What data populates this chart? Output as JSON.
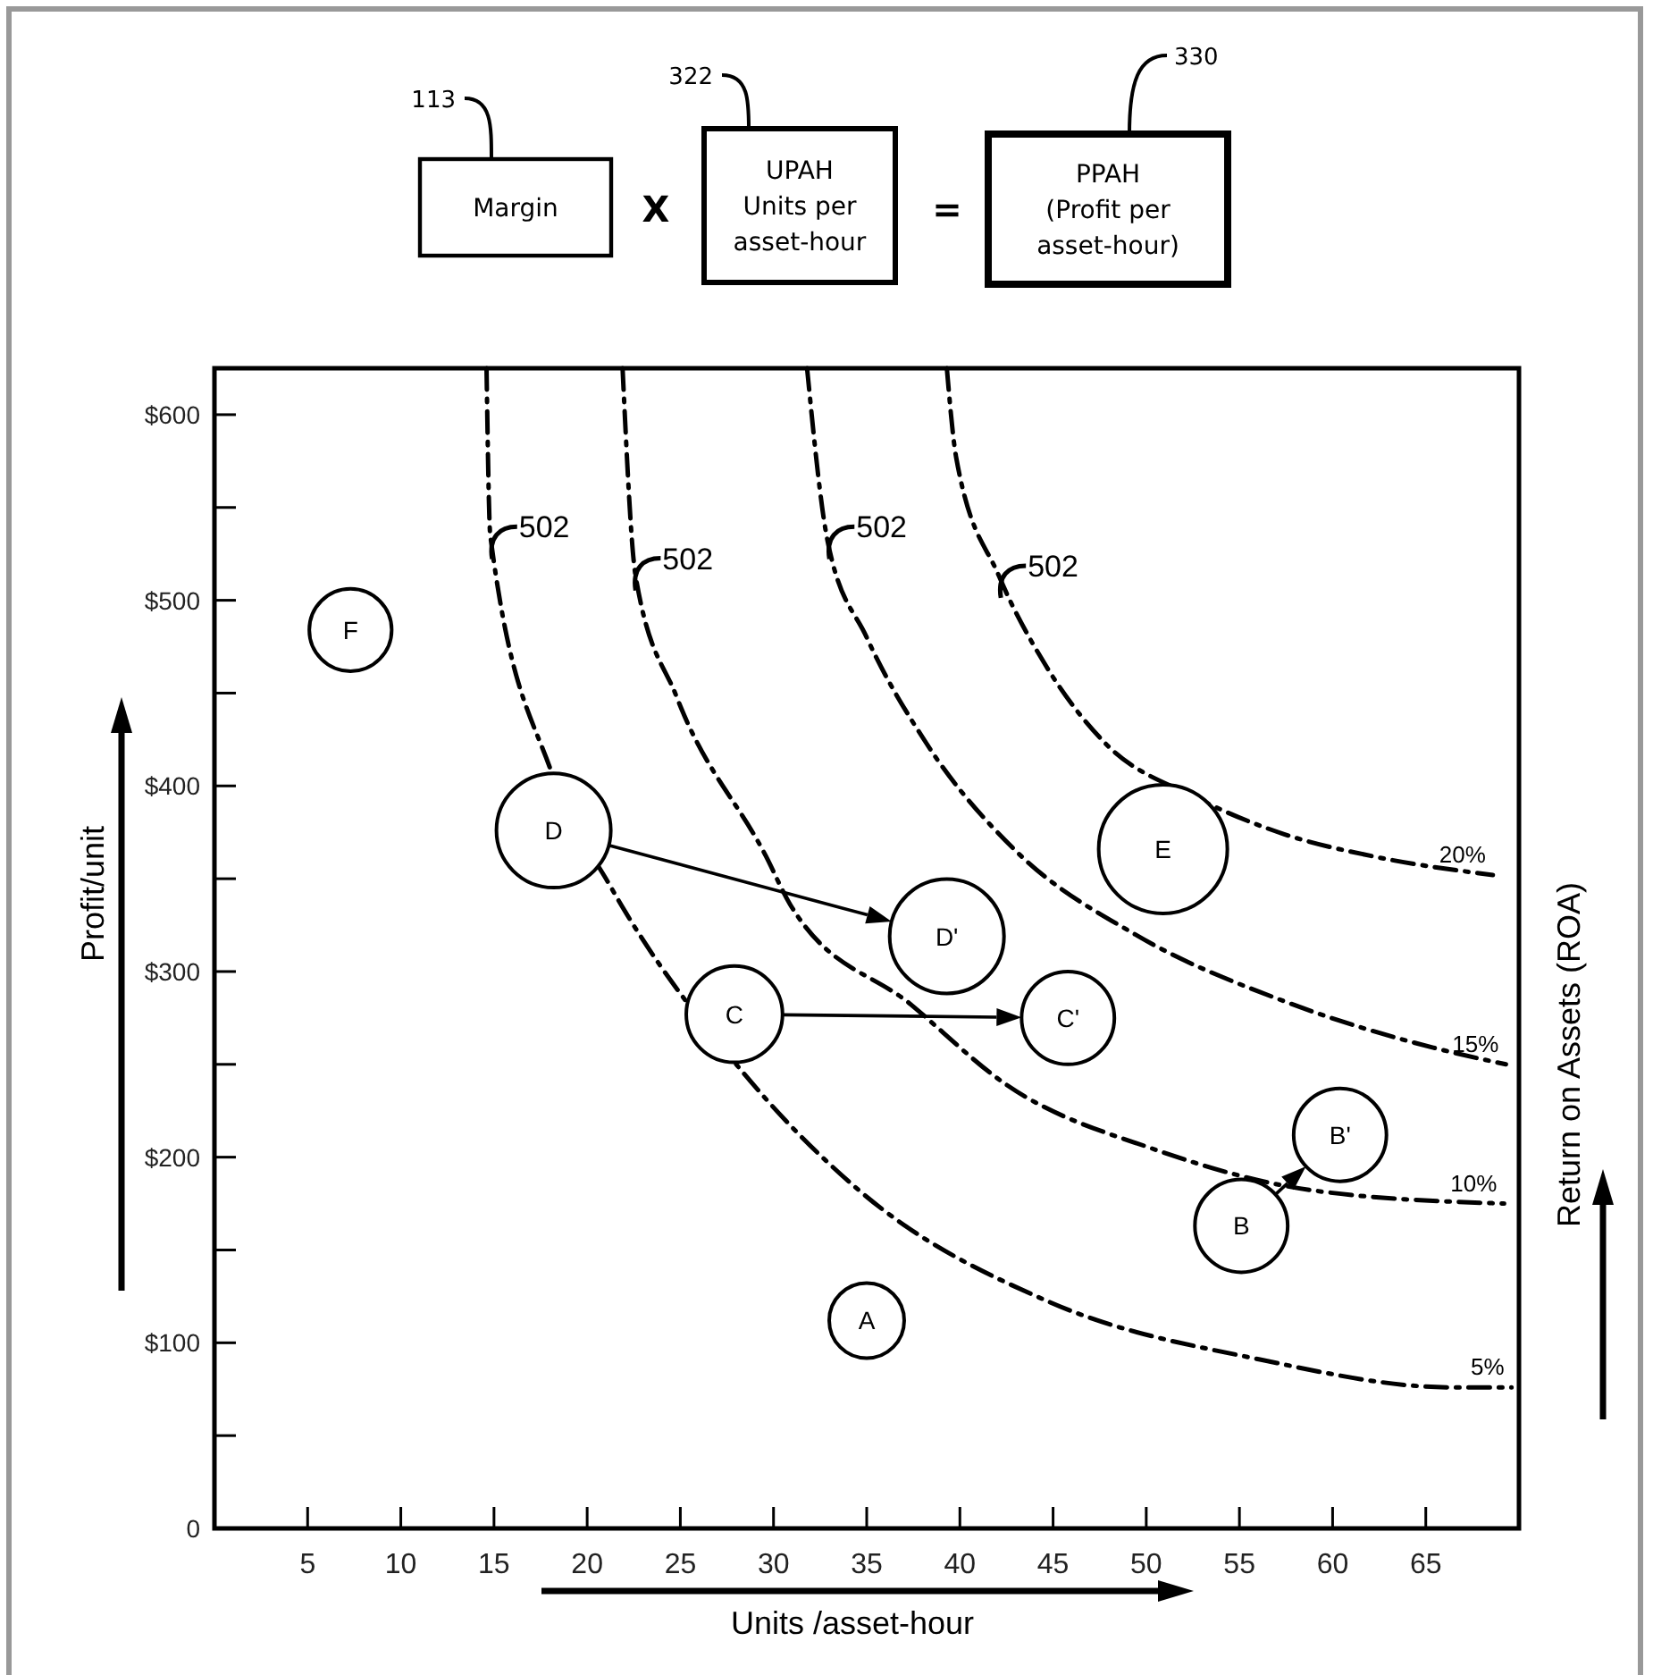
{
  "chart_data": {
    "type": "bubble",
    "xlabel": "Units /asset-hour",
    "ylabel": "Profit/unit",
    "y2label": "Return on Assets (ROA)",
    "xlim": [
      0,
      70
    ],
    "xticks": [
      5,
      10,
      15,
      20,
      25,
      30,
      35,
      40,
      45,
      50,
      55,
      60,
      65
    ],
    "ylim": [
      0,
      625
    ],
    "yticks": [
      0,
      {
        "value": 50,
        "label": null
      },
      {
        "value": 100,
        "label": "$100"
      },
      {
        "value": 150,
        "label": null
      },
      {
        "value": 200,
        "label": "$200"
      },
      {
        "value": 250,
        "label": null
      },
      {
        "value": 300,
        "label": "$300"
      },
      {
        "value": 350,
        "label": null
      },
      {
        "value": 400,
        "label": "$400"
      },
      {
        "value": 450,
        "label": null
      },
      {
        "value": 500,
        "label": "$500"
      },
      {
        "value": 550,
        "label": null
      },
      {
        "value": 600,
        "label": "$600"
      }
    ],
    "grid": false,
    "line_style": "dashed",
    "tick_labels": "xy",
    "series": [
      {
        "color": "#000000",
        "x": [
          7.3,
          18.2,
          27.9,
          39.3,
          45.8,
          50.9,
          55.1,
          60.4,
          35.0
        ],
        "values": [
          484,
          376,
          277,
          319,
          275,
          366,
          163,
          212,
          112
        ],
        "sizes": [
          0.41,
          0.79,
          0.56,
          0.79,
          0.52,
          1,
          0.52,
          0.52,
          0.34
        ]
      },
      {
        "type": "line",
        "name": "5%",
        "color": "#000000",
        "x": [
          14.6,
          14.8,
          18.1,
          21.3,
          28,
          34.6,
          44.8,
          56.1,
          66.4,
          69.6
        ],
        "values": [
          625,
          535,
          407,
          345,
          250,
          182,
          122,
          91,
          76,
          76
        ]
      },
      {
        "type": "line",
        "name": "10%",
        "color": "#000000",
        "x": [
          21.9,
          22.6,
          24.8,
          29.6,
          30.9,
          37.4,
          42.5,
          50.5,
          59,
          69.2
        ],
        "values": [
          625,
          513,
          448,
          362,
          336,
          282,
          239,
          204,
          182,
          175
        ]
      },
      {
        "type": "line",
        "name": "15%",
        "color": "#000000",
        "x": [
          31.8,
          32.9,
          35,
          38.2,
          43,
          49.4,
          57.4,
          65.4,
          69.3
        ],
        "values": [
          625,
          532,
          480,
          423,
          365,
          320,
          284,
          259,
          250
        ]
      },
      {
        "type": "line",
        "name": "20%",
        "color": "#000000",
        "x": [
          39.3,
          39.8,
          42.1,
          44.6,
          47.8,
          52.6,
          57.4,
          62.2,
          68.6
        ],
        "values": [
          625,
          577,
          513,
          465,
          423,
          394,
          374,
          362,
          352
        ]
      }
    ],
    "annotations": [
      "113",
      "Margin",
      "X",
      "322",
      "UPAH\nUnits per\nasset-hour",
      "=",
      "330",
      "PPAH\n(Profit per\nasset-hour)",
      {
        "text": "F",
        "x": 7.3,
        "y": 484
      },
      {
        "text": "D",
        "x": 18.2,
        "y": 376
      },
      {
        "text": "C",
        "x": 27.9,
        "y": 277
      },
      {
        "text": "D'",
        "x": 39.3,
        "y": 319
      },
      {
        "text": "C'",
        "x": 45.8,
        "y": 275
      },
      {
        "text": "E",
        "x": 50.9,
        "y": 366
      },
      {
        "text": "B",
        "x": 55.1,
        "y": 163
      },
      {
        "text": "B'",
        "x": 60.4,
        "y": 212
      },
      {
        "text": "A",
        "x": 35.0,
        "y": 112
      },
      {
        "text": "502",
        "x": 14.9,
        "y": 530
      },
      {
        "text": "502",
        "x": 22.6,
        "y": 513
      },
      {
        "text": "502",
        "x": 33,
        "y": 530
      },
      {
        "text": "502",
        "x": 42.2,
        "y": 509
      }
    ]
  }
}
